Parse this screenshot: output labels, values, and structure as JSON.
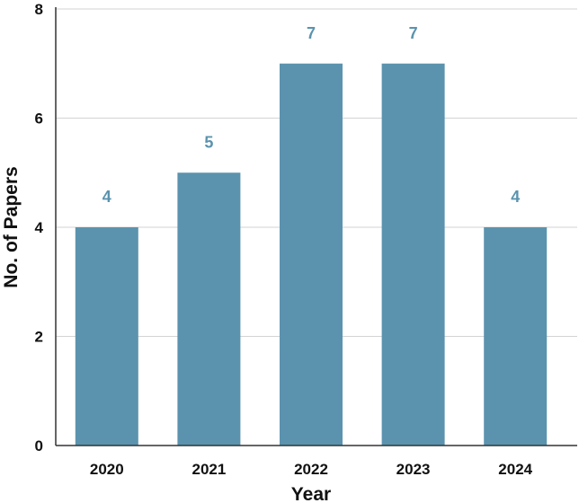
{
  "chart_data": {
    "type": "bar",
    "categories": [
      "2020",
      "2021",
      "2022",
      "2023",
      "2024"
    ],
    "values": [
      4,
      5,
      7,
      7,
      4
    ],
    "data_labels": [
      "4",
      "5",
      "7",
      "7",
      "4"
    ],
    "xlabel": "Year",
    "ylabel": "No. of Papers",
    "ylim": [
      0,
      8
    ],
    "yticks": [
      "0",
      "2",
      "4",
      "6",
      "8"
    ],
    "grid": true,
    "bar_color": "#5b93ae",
    "label_color": "#5b93ae",
    "grid_color": "#d3d3d3",
    "axis_color": "#333333"
  }
}
